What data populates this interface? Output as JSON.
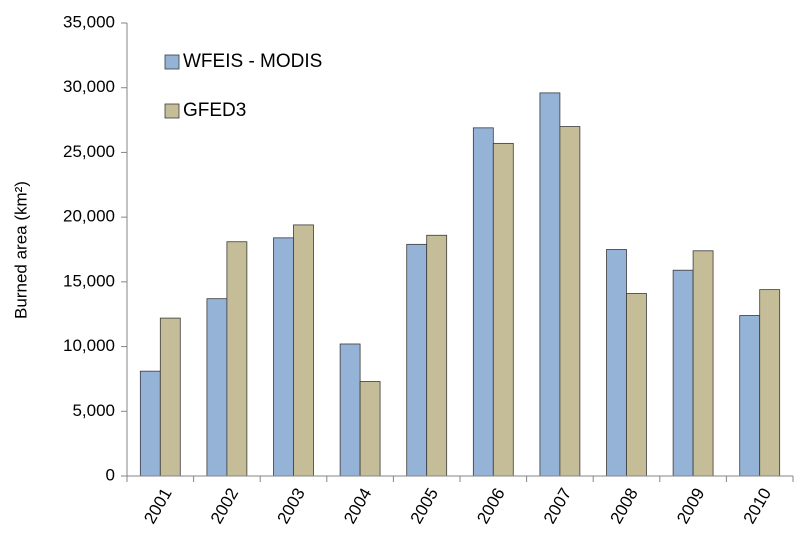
{
  "chart_data": {
    "type": "bar",
    "y_label": "Burned area (km²)",
    "categories": [
      "2001",
      "2002",
      "2003",
      "2004",
      "2005",
      "2006",
      "2007",
      "2008",
      "2009",
      "2010"
    ],
    "series": [
      {
        "name": "WFEIS - MODIS",
        "color": "#95b3d7",
        "values": [
          8100,
          13700,
          18400,
          10200,
          17900,
          26900,
          29600,
          17500,
          15900,
          12400
        ]
      },
      {
        "name": "GFED3",
        "color": "#c4bd97",
        "values": [
          12200,
          18100,
          19400,
          7300,
          18600,
          25700,
          27000,
          14100,
          17400,
          14400
        ]
      }
    ],
    "ylim": [
      0,
      35000
    ],
    "yticks": [
      0,
      {
        "value": 5000,
        "label": "5,000"
      },
      {
        "value": 10000,
        "label": "10,000"
      },
      {
        "value": 15000,
        "label": "15,000"
      },
      {
        "value": 20000,
        "label": "20,000"
      },
      {
        "value": 25000,
        "label": "25,000"
      },
      {
        "value": 30000,
        "label": "30,000"
      },
      {
        "value": 35000,
        "label": "35,000"
      }
    ],
    "grid": false,
    "legend": "upper left"
  }
}
